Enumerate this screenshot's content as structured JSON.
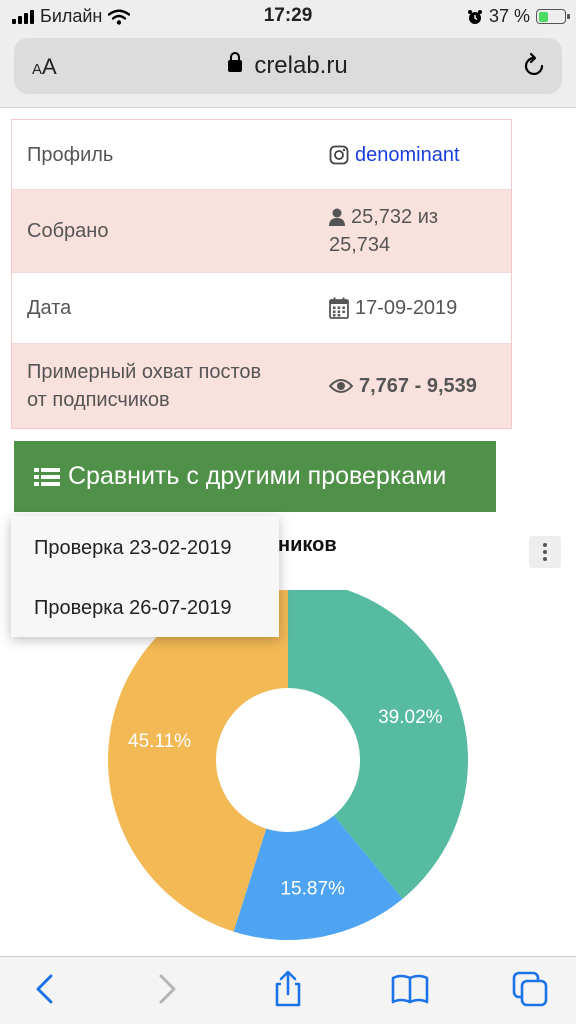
{
  "status_bar": {
    "carrier": "Билайн",
    "time": "17:29",
    "battery_percent": "37 %",
    "battery_level": 0.37
  },
  "browser": {
    "text_size_label_small": "A",
    "text_size_label_large": "A",
    "url": "crelab.ru"
  },
  "stats": {
    "rows": [
      {
        "label": "Профиль",
        "value": "denominant",
        "icon": "instagram-icon"
      },
      {
        "label": "Собрано",
        "value_line1": "25,732 из",
        "value_line2": "25,734",
        "icon": "user-icon"
      },
      {
        "label": "Дата",
        "value": "17-09-2019",
        "icon": "calendar-icon"
      },
      {
        "label_line1": "Примерный охват постов",
        "label_line2": "от подписчиков",
        "value": "7,767 - 9,539",
        "icon": "eye-icon"
      }
    ]
  },
  "compare_button": {
    "label": "Сравнить с другими проверками",
    "icon": "list-icon"
  },
  "chart_title_visible": "ников",
  "dropdown": {
    "items": [
      "Проверка 23-02-2019",
      "Проверка 26-07-2019"
    ]
  },
  "chart_data": {
    "type": "pie",
    "title": "",
    "values": [
      39.02,
      15.87,
      45.11
    ],
    "labels": [
      "39.02%",
      "15.87%",
      "45.11%"
    ],
    "colors": [
      "#57bba1",
      "#4ea4f2",
      "#f2b955"
    ]
  },
  "toolbar": {
    "icons": [
      "back-icon",
      "forward-icon",
      "share-icon",
      "bookmarks-icon",
      "tabs-icon"
    ],
    "accent": "#1a73e8"
  }
}
